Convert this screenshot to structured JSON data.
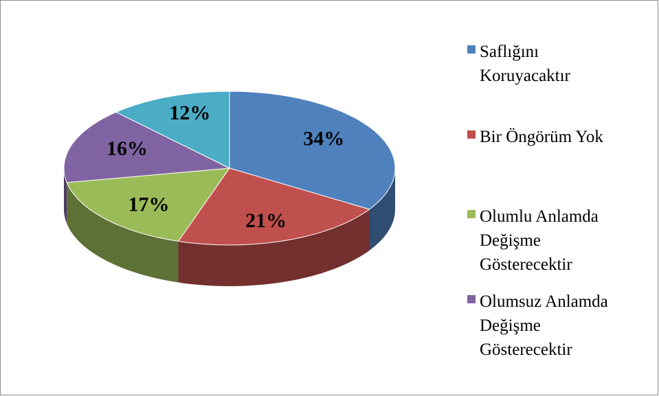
{
  "chart_data": {
    "type": "pie",
    "categories": [
      "Saflığını Koruyacaktır",
      "Bir Öngörüm Yok",
      "Olumlu Anlamda Değişme Gösterecektir",
      "Olumsuz Anlamda Değişme Gösterecektir",
      null
    ],
    "values": [
      34,
      21,
      17,
      16,
      12
    ],
    "value_labels": [
      "34%",
      "21%",
      "17%",
      "16%",
      "12%"
    ],
    "colors": [
      "#4f81bd",
      "#c0504d",
      "#9bbb59",
      "#8064a2",
      "#4bacc6"
    ],
    "legend": "right"
  }
}
